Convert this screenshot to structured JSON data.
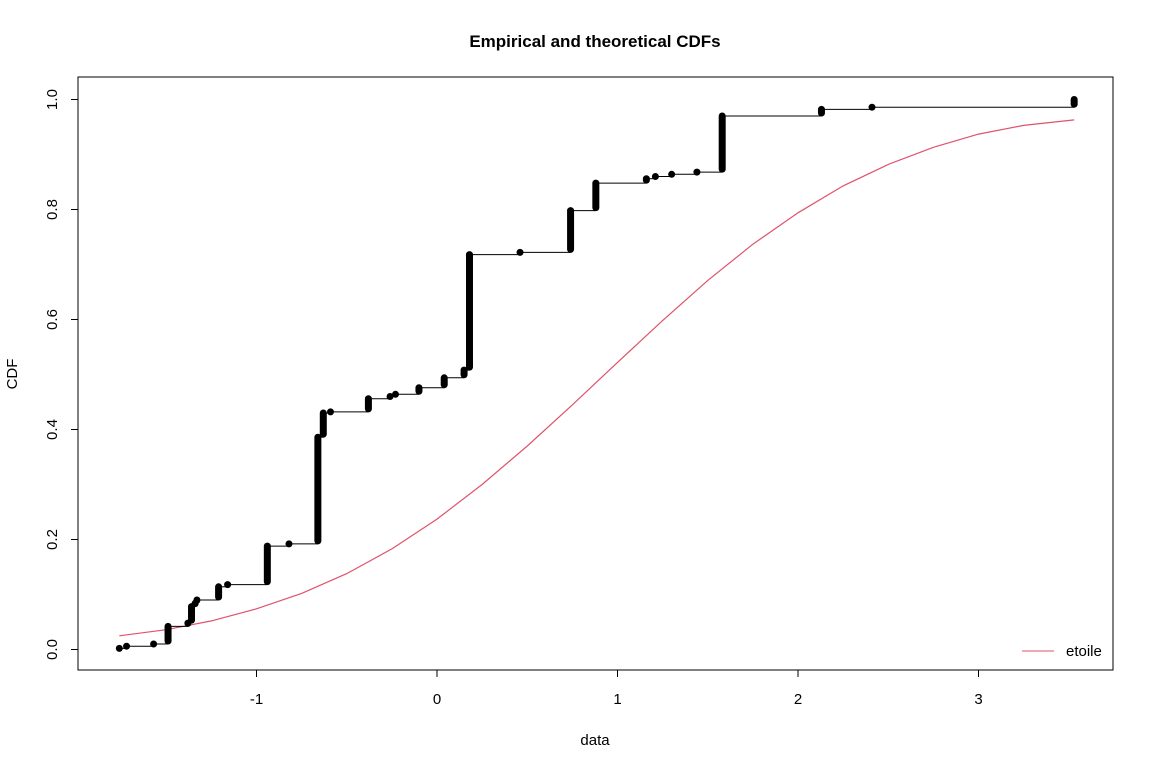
{
  "chart_data": {
    "type": "line",
    "title": "Empirical and theoretical CDFs",
    "xlabel": "data",
    "ylabel": "CDF",
    "xlim": [
      -1.78,
      3.55
    ],
    "ylim": [
      -0.03,
      1.03
    ],
    "x_ticks": [
      -1,
      0,
      1,
      2,
      3
    ],
    "x_tick_labels": [
      "-1",
      "0",
      "1",
      "2",
      "3"
    ],
    "y_ticks": [
      0.0,
      0.2,
      0.4,
      0.6,
      0.8,
      1.0
    ],
    "y_tick_labels": [
      "0.0",
      "0.2",
      "0.4",
      "0.6",
      "0.8",
      "1.0"
    ],
    "grid": false,
    "legend_position": "bottom-right",
    "series": [
      {
        "kind": "empirical-step",
        "color": "#000000",
        "jumps": [
          {
            "x": -1.76,
            "from": 0.0,
            "to": 0.002
          },
          {
            "x": -1.72,
            "from": 0.002,
            "to": 0.006
          },
          {
            "x": -1.57,
            "from": 0.006,
            "to": 0.01
          },
          {
            "x": -1.49,
            "from": 0.01,
            "to": 0.042
          },
          {
            "x": -1.38,
            "from": 0.042,
            "to": 0.048
          },
          {
            "x": -1.36,
            "from": 0.048,
            "to": 0.078
          },
          {
            "x": -1.34,
            "from": 0.078,
            "to": 0.084
          },
          {
            "x": -1.33,
            "from": 0.084,
            "to": 0.09
          },
          {
            "x": -1.21,
            "from": 0.09,
            "to": 0.114
          },
          {
            "x": -1.16,
            "from": 0.114,
            "to": 0.118
          },
          {
            "x": -0.94,
            "from": 0.118,
            "to": 0.188
          },
          {
            "x": -0.82,
            "from": 0.188,
            "to": 0.192
          },
          {
            "x": -0.66,
            "from": 0.192,
            "to": 0.386
          },
          {
            "x": -0.63,
            "from": 0.386,
            "to": 0.43
          },
          {
            "x": -0.59,
            "from": 0.43,
            "to": 0.432
          },
          {
            "x": -0.38,
            "from": 0.432,
            "to": 0.456
          },
          {
            "x": -0.26,
            "from": 0.456,
            "to": 0.46
          },
          {
            "x": -0.23,
            "from": 0.46,
            "to": 0.464
          },
          {
            "x": -0.1,
            "from": 0.464,
            "to": 0.476
          },
          {
            "x": 0.04,
            "from": 0.476,
            "to": 0.494
          },
          {
            "x": 0.15,
            "from": 0.494,
            "to": 0.508
          },
          {
            "x": 0.18,
            "from": 0.508,
            "to": 0.718
          },
          {
            "x": 0.46,
            "from": 0.718,
            "to": 0.722
          },
          {
            "x": 0.74,
            "from": 0.722,
            "to": 0.798
          },
          {
            "x": 0.88,
            "from": 0.798,
            "to": 0.848
          },
          {
            "x": 1.16,
            "from": 0.848,
            "to": 0.856
          },
          {
            "x": 1.21,
            "from": 0.856,
            "to": 0.86
          },
          {
            "x": 1.3,
            "from": 0.86,
            "to": 0.864
          },
          {
            "x": 1.44,
            "from": 0.864,
            "to": 0.868
          },
          {
            "x": 1.58,
            "from": 0.868,
            "to": 0.97
          },
          {
            "x": 2.13,
            "from": 0.97,
            "to": 0.982
          },
          {
            "x": 2.41,
            "from": 0.982,
            "to": 0.986
          },
          {
            "x": 3.53,
            "from": 0.986,
            "to": 1.0
          }
        ]
      },
      {
        "kind": "theoretical",
        "name": "etoile",
        "color": "#DF536B",
        "x": [
          -1.76,
          -1.5,
          -1.25,
          -1.0,
          -0.75,
          -0.5,
          -0.25,
          0.0,
          0.25,
          0.5,
          0.75,
          1.0,
          1.25,
          1.5,
          1.75,
          2.0,
          2.25,
          2.5,
          2.75,
          3.0,
          3.25,
          3.53
        ],
        "y": [
          0.025,
          0.036,
          0.052,
          0.074,
          0.102,
          0.138,
          0.183,
          0.237,
          0.3,
          0.37,
          0.445,
          0.522,
          0.598,
          0.671,
          0.737,
          0.794,
          0.843,
          0.882,
          0.913,
          0.937,
          0.953,
          0.963
        ]
      }
    ]
  }
}
